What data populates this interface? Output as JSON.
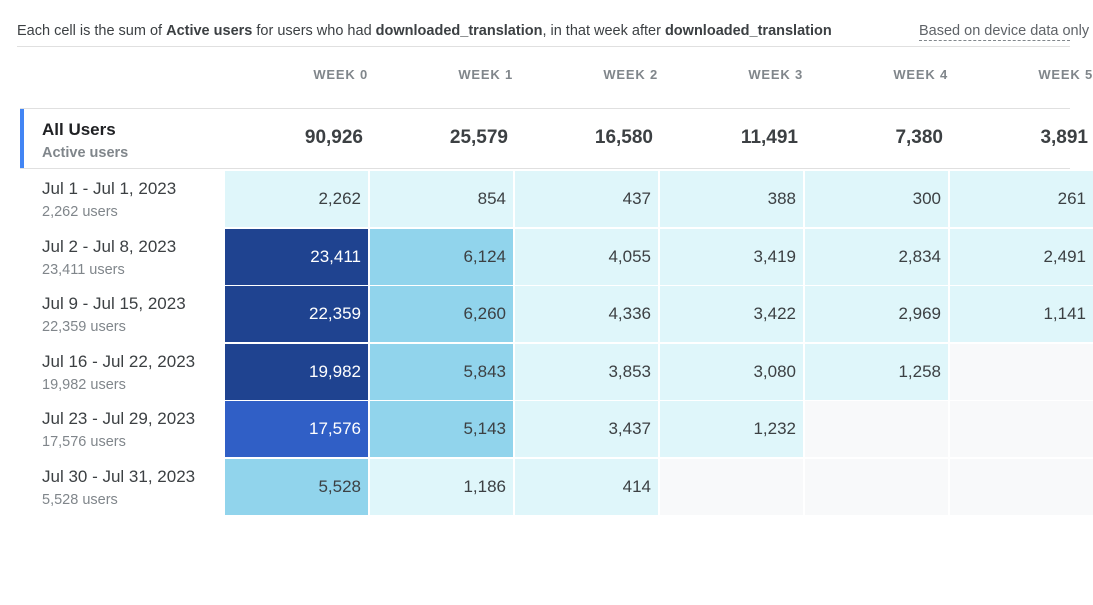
{
  "description": {
    "prefix": "Each cell is the sum of ",
    "metric": "Active users",
    "middle": " for users who had ",
    "event1": "downloaded_translation",
    "middle2": ", in that week after ",
    "event2": "downloaded_translation"
  },
  "device_note": "Based on device data only",
  "weeks": [
    "WEEK 0",
    "WEEK 1",
    "WEEK 2",
    "WEEK 3",
    "WEEK 4",
    "WEEK 5"
  ],
  "all_users": {
    "title": "All Users",
    "subtitle": "Active users",
    "values": [
      "90,926",
      "25,579",
      "16,580",
      "11,491",
      "7,380",
      "3,891"
    ]
  },
  "rows": [
    {
      "label": "Jul 1 - Jul 1, 2023",
      "sub": "2,262 users",
      "cells": [
        {
          "v": "2,262",
          "lvl": 1
        },
        {
          "v": "854",
          "lvl": 1
        },
        {
          "v": "437",
          "lvl": 1
        },
        {
          "v": "388",
          "lvl": 1
        },
        {
          "v": "300",
          "lvl": 1
        },
        {
          "v": "261",
          "lvl": 1
        }
      ]
    },
    {
      "label": "Jul 2 - Jul 8, 2023",
      "sub": "23,411 users",
      "cells": [
        {
          "v": "23,411",
          "lvl": 4
        },
        {
          "v": "6,124",
          "lvl": 2
        },
        {
          "v": "4,055",
          "lvl": 1
        },
        {
          "v": "3,419",
          "lvl": 1
        },
        {
          "v": "2,834",
          "lvl": 1
        },
        {
          "v": "2,491",
          "lvl": 1
        }
      ]
    },
    {
      "label": "Jul 9 - Jul 15, 2023",
      "sub": "22,359 users",
      "cells": [
        {
          "v": "22,359",
          "lvl": 4
        },
        {
          "v": "6,260",
          "lvl": 2
        },
        {
          "v": "4,336",
          "lvl": 1
        },
        {
          "v": "3,422",
          "lvl": 1
        },
        {
          "v": "2,969",
          "lvl": 1
        },
        {
          "v": "1,141",
          "lvl": 1
        }
      ]
    },
    {
      "label": "Jul 16 - Jul 22, 2023",
      "sub": "19,982 users",
      "cells": [
        {
          "v": "19,982",
          "lvl": 4
        },
        {
          "v": "5,843",
          "lvl": 2
        },
        {
          "v": "3,853",
          "lvl": 1
        },
        {
          "v": "3,080",
          "lvl": 1
        },
        {
          "v": "1,258",
          "lvl": 1
        },
        {
          "v": "",
          "lvl": 0
        }
      ]
    },
    {
      "label": "Jul 23 - Jul 29, 2023",
      "sub": "17,576 users",
      "cells": [
        {
          "v": "17,576",
          "lvl": 3
        },
        {
          "v": "5,143",
          "lvl": 2
        },
        {
          "v": "3,437",
          "lvl": 1
        },
        {
          "v": "1,232",
          "lvl": 1
        },
        {
          "v": "",
          "lvl": 0
        },
        {
          "v": "",
          "lvl": 0
        }
      ]
    },
    {
      "label": "Jul 30 - Jul 31, 2023",
      "sub": "5,528 users",
      "cells": [
        {
          "v": "5,528",
          "lvl": 2
        },
        {
          "v": "1,186",
          "lvl": 1
        },
        {
          "v": "414",
          "lvl": 1
        },
        {
          "v": "",
          "lvl": 0
        },
        {
          "v": "",
          "lvl": 0
        },
        {
          "v": "",
          "lvl": 0
        }
      ]
    }
  ]
}
